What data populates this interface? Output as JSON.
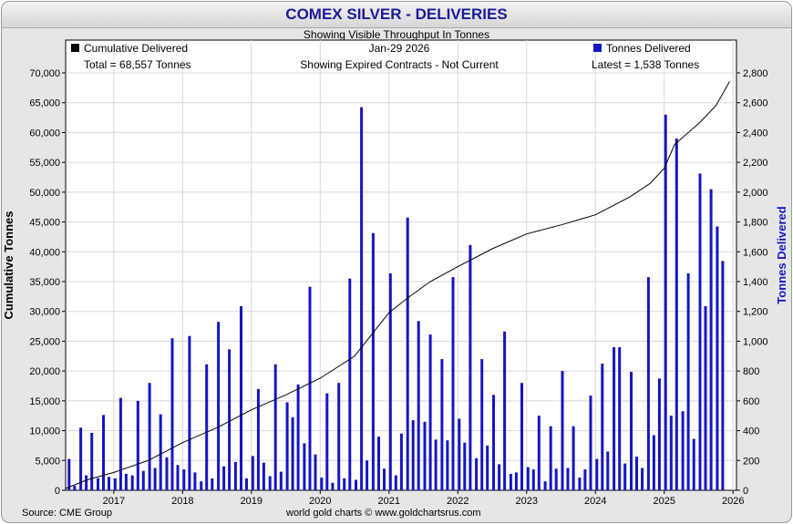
{
  "title": "COMEX SILVER - DELIVERIES",
  "subtitle": "Showing Visible Throughput In Tonnes",
  "source": "Source: CME Group",
  "credit": "world gold charts © www.goldchartsrus.com",
  "colors": {
    "bar": "#1515c4",
    "line": "#000000",
    "title": "#1a1a9a",
    "right_axis_label": "#1515c4"
  },
  "chart_data": {
    "type": "bar",
    "legend_left": {
      "label": "Cumulative Delivered",
      "total": "Total = 68,557 Tonnes"
    },
    "legend_right": {
      "label": "Tonnes Delivered",
      "latest": "Latest = 1,538 Tonnes"
    },
    "center_info": {
      "date": "Jan-29  2026",
      "note": "Showing Expired Contracts - Not Current"
    },
    "ylabel_left": "Cumulative Tonnes",
    "ylabel_right": "Tonnes Delivered",
    "ylim_left": [
      0,
      70000
    ],
    "ylim_right": [
      0,
      2800
    ],
    "left_ticks": [
      "0",
      "5,000",
      "10,000",
      "15,000",
      "20,000",
      "25,000",
      "30,000",
      "35,000",
      "40,000",
      "45,000",
      "50,000",
      "55,000",
      "60,000",
      "65,000",
      "70,000"
    ],
    "right_ticks": [
      "0",
      "200",
      "400",
      "600",
      "800",
      "1,000",
      "1,200",
      "1,400",
      "1,600",
      "1,800",
      "2,000",
      "2,200",
      "2,400",
      "2,600",
      "2,800"
    ],
    "x_range": [
      2016.3,
      2026.05
    ],
    "x_ticks": [
      2017,
      2018,
      2019,
      2020,
      2021,
      2022,
      2023,
      2024,
      2025,
      2026
    ],
    "bar_width_years": 0.04,
    "bars": [
      {
        "x": 2016.35,
        "v": 210
      },
      {
        "x": 2016.43,
        "v": 30
      },
      {
        "x": 2016.52,
        "v": 420
      },
      {
        "x": 2016.6,
        "v": 100
      },
      {
        "x": 2016.68,
        "v": 385
      },
      {
        "x": 2016.77,
        "v": 80
      },
      {
        "x": 2016.85,
        "v": 505
      },
      {
        "x": 2016.93,
        "v": 90
      },
      {
        "x": 2017.02,
        "v": 80
      },
      {
        "x": 2016.77,
        "v": 80
      },
      {
        "x": 2017.1,
        "v": 620
      },
      {
        "x": 2017.18,
        "v": 110
      },
      {
        "x": 2017.27,
        "v": 100
      },
      {
        "x": 2017.35,
        "v": 600
      },
      {
        "x": 2017.43,
        "v": 130
      },
      {
        "x": 2017.52,
        "v": 720
      },
      {
        "x": 2017.6,
        "v": 150
      },
      {
        "x": 2017.68,
        "v": 510
      },
      {
        "x": 2017.77,
        "v": 220
      },
      {
        "x": 2017.85,
        "v": 1020
      },
      {
        "x": 2017.93,
        "v": 170
      },
      {
        "x": 2018.02,
        "v": 140
      },
      {
        "x": 2018.1,
        "v": 1035
      },
      {
        "x": 2018.18,
        "v": 120
      },
      {
        "x": 2018.27,
        "v": 60
      },
      {
        "x": 2018.35,
        "v": 845
      },
      {
        "x": 2018.43,
        "v": 80
      },
      {
        "x": 2018.52,
        "v": 1130
      },
      {
        "x": 2018.6,
        "v": 160
      },
      {
        "x": 2018.68,
        "v": 945
      },
      {
        "x": 2018.77,
        "v": 190
      },
      {
        "x": 2018.85,
        "v": 1235
      },
      {
        "x": 2018.93,
        "v": 80
      },
      {
        "x": 2019.02,
        "v": 230
      },
      {
        "x": 2019.1,
        "v": 680
      },
      {
        "x": 2019.18,
        "v": 185
      },
      {
        "x": 2019.27,
        "v": 95
      },
      {
        "x": 2019.35,
        "v": 845
      },
      {
        "x": 2019.43,
        "v": 125
      },
      {
        "x": 2019.52,
        "v": 590
      },
      {
        "x": 2019.6,
        "v": 490
      },
      {
        "x": 2019.68,
        "v": 710
      },
      {
        "x": 2019.77,
        "v": 315
      },
      {
        "x": 2019.85,
        "v": 1365
      },
      {
        "x": 2019.93,
        "v": 240
      },
      {
        "x": 2020.02,
        "v": 85
      },
      {
        "x": 2020.1,
        "v": 650
      },
      {
        "x": 2020.18,
        "v": 50
      },
      {
        "x": 2020.27,
        "v": 720
      },
      {
        "x": 2020.35,
        "v": 80
      },
      {
        "x": 2020.43,
        "v": 1420
      },
      {
        "x": 2020.52,
        "v": 70
      },
      {
        "x": 2020.6,
        "v": 2570
      },
      {
        "x": 2020.68,
        "v": 200
      },
      {
        "x": 2020.77,
        "v": 1725
      },
      {
        "x": 2020.85,
        "v": 360
      },
      {
        "x": 2020.93,
        "v": 145
      },
      {
        "x": 2021.02,
        "v": 1455
      },
      {
        "x": 2021.1,
        "v": 100
      },
      {
        "x": 2021.18,
        "v": 380
      },
      {
        "x": 2021.27,
        "v": 1830
      },
      {
        "x": 2021.35,
        "v": 470
      },
      {
        "x": 2021.43,
        "v": 1135
      },
      {
        "x": 2021.52,
        "v": 460
      },
      {
        "x": 2021.6,
        "v": 1045
      },
      {
        "x": 2021.68,
        "v": 340
      },
      {
        "x": 2021.77,
        "v": 880
      },
      {
        "x": 2021.85,
        "v": 335
      },
      {
        "x": 2021.93,
        "v": 1430
      },
      {
        "x": 2022.02,
        "v": 480
      },
      {
        "x": 2022.1,
        "v": 320
      },
      {
        "x": 2022.18,
        "v": 1645
      },
      {
        "x": 2022.27,
        "v": 215
      },
      {
        "x": 2022.35,
        "v": 880
      },
      {
        "x": 2022.43,
        "v": 300
      },
      {
        "x": 2022.52,
        "v": 640
      },
      {
        "x": 2022.6,
        "v": 175
      },
      {
        "x": 2022.68,
        "v": 1065
      },
      {
        "x": 2022.77,
        "v": 110
      },
      {
        "x": 2022.85,
        "v": 120
      },
      {
        "x": 2022.93,
        "v": 720
      },
      {
        "x": 2023.02,
        "v": 155
      },
      {
        "x": 2023.1,
        "v": 140
      },
      {
        "x": 2023.18,
        "v": 500
      },
      {
        "x": 2023.27,
        "v": 60
      },
      {
        "x": 2023.35,
        "v": 430
      },
      {
        "x": 2023.43,
        "v": 145
      },
      {
        "x": 2023.52,
        "v": 800
      },
      {
        "x": 2023.6,
        "v": 150
      },
      {
        "x": 2023.68,
        "v": 430
      },
      {
        "x": 2023.77,
        "v": 85
      },
      {
        "x": 2023.85,
        "v": 140
      },
      {
        "x": 2023.93,
        "v": 635
      },
      {
        "x": 2024.02,
        "v": 210
      },
      {
        "x": 2024.1,
        "v": 850
      },
      {
        "x": 2024.18,
        "v": 260
      },
      {
        "x": 2024.27,
        "v": 960
      },
      {
        "x": 2024.35,
        "v": 960
      },
      {
        "x": 2024.43,
        "v": 180
      },
      {
        "x": 2024.52,
        "v": 795
      },
      {
        "x": 2024.6,
        "v": 225
      },
      {
        "x": 2024.68,
        "v": 150
      },
      {
        "x": 2024.77,
        "v": 1430
      },
      {
        "x": 2024.85,
        "v": 370
      },
      {
        "x": 2024.93,
        "v": 750
      },
      {
        "x": 2025.02,
        "v": 2520
      },
      {
        "x": 2025.1,
        "v": 500
      },
      {
        "x": 2025.18,
        "v": 2360
      },
      {
        "x": 2025.27,
        "v": 530
      },
      {
        "x": 2025.35,
        "v": 1455
      },
      {
        "x": 2025.43,
        "v": 345
      },
      {
        "x": 2025.52,
        "v": 2125
      },
      {
        "x": 2025.6,
        "v": 1235
      },
      {
        "x": 2025.68,
        "v": 2020
      },
      {
        "x": 2025.77,
        "v": 1770
      },
      {
        "x": 2025.85,
        "v": 1538
      }
    ],
    "cumulative": [
      {
        "x": 2016.3,
        "v": 300
      },
      {
        "x": 2016.6,
        "v": 1700
      },
      {
        "x": 2017.0,
        "v": 3000
      },
      {
        "x": 2017.5,
        "v": 5000
      },
      {
        "x": 2018.0,
        "v": 8000
      },
      {
        "x": 2018.5,
        "v": 10500
      },
      {
        "x": 2019.0,
        "v": 13500
      },
      {
        "x": 2019.5,
        "v": 16000
      },
      {
        "x": 2020.0,
        "v": 18800
      },
      {
        "x": 2020.5,
        "v": 22500
      },
      {
        "x": 2021.0,
        "v": 29800
      },
      {
        "x": 2021.3,
        "v": 32500
      },
      {
        "x": 2021.6,
        "v": 35000
      },
      {
        "x": 2022.0,
        "v": 37500
      },
      {
        "x": 2022.5,
        "v": 40500
      },
      {
        "x": 2023.0,
        "v": 43000
      },
      {
        "x": 2023.5,
        "v": 44500
      },
      {
        "x": 2024.0,
        "v": 46200
      },
      {
        "x": 2024.5,
        "v": 49200
      },
      {
        "x": 2024.8,
        "v": 51500
      },
      {
        "x": 2025.0,
        "v": 54000
      },
      {
        "x": 2025.15,
        "v": 58000
      },
      {
        "x": 2025.5,
        "v": 61500
      },
      {
        "x": 2025.75,
        "v": 64500
      },
      {
        "x": 2025.95,
        "v": 68557
      }
    ]
  }
}
